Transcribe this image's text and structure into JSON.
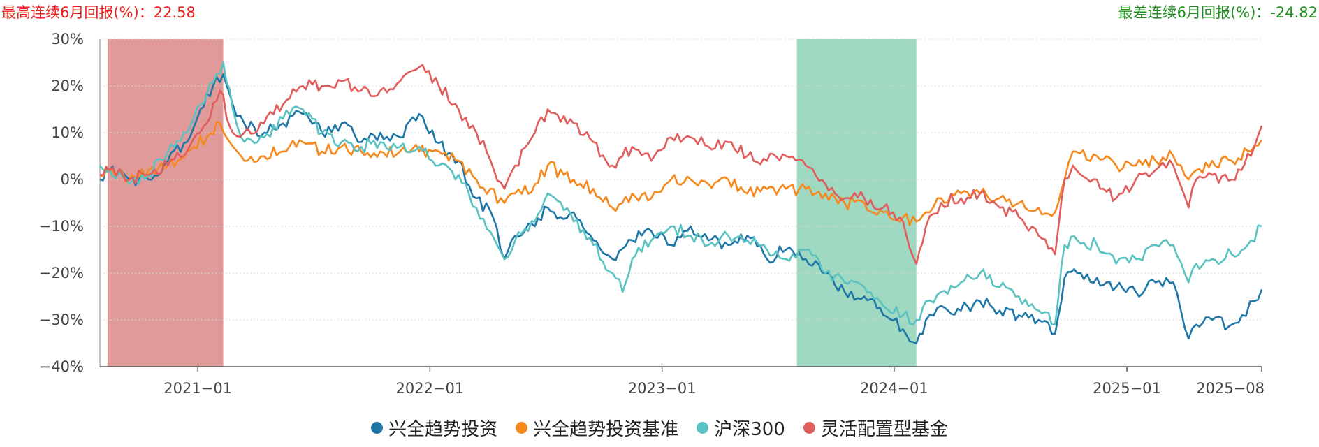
{
  "header": {
    "best_label": "最高连续6月回报(%)：",
    "best_value": "22.58",
    "worst_label": "最差连续6月回报(%)：",
    "worst_value": "-24.82"
  },
  "colors": {
    "fund": "#1f77a8",
    "benchmark": "#f5891e",
    "hs300": "#5bc2c2",
    "category": "#e15d5d",
    "best_band": "#e09a9a",
    "worst_band": "#9fd9c1"
  },
  "chart_data": {
    "type": "line",
    "y_unit": "%",
    "ylim": [
      -40,
      30
    ],
    "yticks": [
      30,
      20,
      10,
      0,
      -10,
      -20,
      -30,
      -40
    ],
    "ytick_labels": [
      "30%",
      "20%",
      "10%",
      "0%",
      "−10%",
      "−20%",
      "−30%",
      "−40%"
    ],
    "xlim": [
      "2020-07-31",
      "2025-08-01"
    ],
    "xticks": [
      "2021-01-01",
      "2022-01-01",
      "2023-01-01",
      "2024-01-01",
      "2025-01-01",
      "2025-08-01"
    ],
    "xtick_labels": [
      "2021−01",
      "2022−01",
      "2023−01",
      "2024−01",
      "2025−01",
      "2025−08"
    ],
    "grid": true,
    "legend_position": "bottom",
    "highlight_bands": [
      {
        "name": "best",
        "start": "2020-08-12",
        "end": "2021-02-10"
      },
      {
        "name": "worst",
        "start": "2023-08-01",
        "end": "2024-02-05"
      }
    ],
    "series": [
      {
        "name": "兴全趋势投资",
        "color_key": "fund",
        "points": [
          [
            "2020-07-31",
            0
          ],
          [
            "2020-08-15",
            2
          ],
          [
            "2020-09-15",
            0
          ],
          [
            "2020-10-15",
            0
          ],
          [
            "2020-11-15",
            4
          ],
          [
            "2020-12-15",
            8
          ],
          [
            "2021-01-05",
            15
          ],
          [
            "2021-01-25",
            20
          ],
          [
            "2021-02-10",
            22.5
          ],
          [
            "2021-02-25",
            16
          ],
          [
            "2021-03-15",
            12
          ],
          [
            "2021-04-15",
            10
          ],
          [
            "2021-05-15",
            12
          ],
          [
            "2021-06-15",
            14
          ],
          [
            "2021-07-15",
            10
          ],
          [
            "2021-08-15",
            12
          ],
          [
            "2021-09-15",
            8
          ],
          [
            "2021-10-15",
            10
          ],
          [
            "2021-11-15",
            9
          ],
          [
            "2021-12-15",
            14
          ],
          [
            "2022-01-10",
            8
          ],
          [
            "2022-02-15",
            4
          ],
          [
            "2022-03-15",
            -4
          ],
          [
            "2022-04-10",
            -8
          ],
          [
            "2022-04-28",
            -17
          ],
          [
            "2022-05-15",
            -12
          ],
          [
            "2022-06-15",
            -10
          ],
          [
            "2022-07-05",
            -6
          ],
          [
            "2022-07-25",
            -8
          ],
          [
            "2022-08-15",
            -7
          ],
          [
            "2022-09-15",
            -13
          ],
          [
            "2022-10-15",
            -17
          ],
          [
            "2022-11-15",
            -13
          ],
          [
            "2022-12-15",
            -11
          ],
          [
            "2023-01-15",
            -14
          ],
          [
            "2023-02-15",
            -10
          ],
          [
            "2023-03-15",
            -13
          ],
          [
            "2023-04-15",
            -14
          ],
          [
            "2023-05-15",
            -12
          ],
          [
            "2023-06-15",
            -17
          ],
          [
            "2023-07-15",
            -15
          ],
          [
            "2023-08-15",
            -17
          ],
          [
            "2023-09-15",
            -20
          ],
          [
            "2023-10-15",
            -24
          ],
          [
            "2023-11-15",
            -25
          ],
          [
            "2023-12-15",
            -29
          ],
          [
            "2024-01-15",
            -32
          ],
          [
            "2024-02-05",
            -35
          ],
          [
            "2024-02-20",
            -30
          ],
          [
            "2024-03-15",
            -27
          ],
          [
            "2024-04-15",
            -28
          ],
          [
            "2024-05-15",
            -26
          ],
          [
            "2024-06-15",
            -28
          ],
          [
            "2024-07-15",
            -29
          ],
          [
            "2024-08-15",
            -30
          ],
          [
            "2024-09-10",
            -33
          ],
          [
            "2024-09-25",
            -21
          ],
          [
            "2024-10-15",
            -20
          ],
          [
            "2024-11-15",
            -21
          ],
          [
            "2024-12-15",
            -23
          ],
          [
            "2025-01-15",
            -24
          ],
          [
            "2025-02-15",
            -22
          ],
          [
            "2025-03-15",
            -22
          ],
          [
            "2025-04-08",
            -34
          ],
          [
            "2025-04-20",
            -31
          ],
          [
            "2025-05-15",
            -30
          ],
          [
            "2025-06-15",
            -31
          ],
          [
            "2025-07-01",
            -29
          ],
          [
            "2025-07-20",
            -26
          ],
          [
            "2025-08-01",
            -23.5
          ]
        ]
      },
      {
        "name": "兴全趋势投资基准",
        "color_key": "benchmark",
        "points": [
          [
            "2020-07-31",
            1
          ],
          [
            "2020-08-15",
            2
          ],
          [
            "2020-09-15",
            0
          ],
          [
            "2020-10-15",
            2
          ],
          [
            "2020-11-15",
            3
          ],
          [
            "2020-12-15",
            6
          ],
          [
            "2021-01-15",
            9
          ],
          [
            "2021-02-05",
            12
          ],
          [
            "2021-02-20",
            8
          ],
          [
            "2021-03-10",
            5
          ],
          [
            "2021-04-15",
            5
          ],
          [
            "2021-05-15",
            6
          ],
          [
            "2021-06-15",
            8
          ],
          [
            "2021-07-15",
            6
          ],
          [
            "2021-08-15",
            7
          ],
          [
            "2021-09-15",
            6
          ],
          [
            "2021-10-15",
            6
          ],
          [
            "2021-11-15",
            6
          ],
          [
            "2021-12-15",
            6
          ],
          [
            "2022-01-15",
            6
          ],
          [
            "2022-02-15",
            4
          ],
          [
            "2022-03-15",
            0
          ],
          [
            "2022-04-28",
            -5
          ],
          [
            "2022-05-15",
            -3
          ],
          [
            "2022-06-15",
            -1
          ],
          [
            "2022-07-05",
            3
          ],
          [
            "2022-08-15",
            0
          ],
          [
            "2022-09-15",
            -2
          ],
          [
            "2022-10-15",
            -6
          ],
          [
            "2022-11-15",
            -3
          ],
          [
            "2022-12-15",
            -4
          ],
          [
            "2023-01-15",
            0
          ],
          [
            "2023-02-15",
            0
          ],
          [
            "2023-03-15",
            -1
          ],
          [
            "2023-04-15",
            0
          ],
          [
            "2023-05-15",
            -3
          ],
          [
            "2023-06-15",
            -2
          ],
          [
            "2023-07-15",
            -2
          ],
          [
            "2023-08-15",
            -2
          ],
          [
            "2023-09-15",
            -3
          ],
          [
            "2023-10-15",
            -5
          ],
          [
            "2023-11-15",
            -5
          ],
          [
            "2023-12-15",
            -7
          ],
          [
            "2024-01-15",
            -8
          ],
          [
            "2024-02-05",
            -9
          ],
          [
            "2024-02-20",
            -7
          ],
          [
            "2024-03-15",
            -4
          ],
          [
            "2024-04-15",
            -3
          ],
          [
            "2024-05-15",
            -3
          ],
          [
            "2024-06-15",
            -4
          ],
          [
            "2024-07-15",
            -5
          ],
          [
            "2024-08-15",
            -6
          ],
          [
            "2024-09-10",
            -7
          ],
          [
            "2024-09-25",
            0
          ],
          [
            "2024-10-08",
            6
          ],
          [
            "2024-11-15",
            5
          ],
          [
            "2024-12-15",
            3
          ],
          [
            "2025-01-15",
            3
          ],
          [
            "2025-02-15",
            4
          ],
          [
            "2025-03-15",
            5
          ],
          [
            "2025-04-08",
            0
          ],
          [
            "2025-04-20",
            2
          ],
          [
            "2025-05-15",
            4
          ],
          [
            "2025-06-15",
            4
          ],
          [
            "2025-07-15",
            6
          ],
          [
            "2025-08-01",
            8.5
          ]
        ]
      },
      {
        "name": "沪深300",
        "color_key": "hs300",
        "points": [
          [
            "2020-07-31",
            3
          ],
          [
            "2020-08-15",
            2
          ],
          [
            "2020-09-15",
            -1
          ],
          [
            "2020-10-15",
            1
          ],
          [
            "2020-11-15",
            6
          ],
          [
            "2020-12-15",
            10
          ],
          [
            "2021-01-15",
            18
          ],
          [
            "2021-02-10",
            25
          ],
          [
            "2021-02-25",
            15
          ],
          [
            "2021-03-10",
            9
          ],
          [
            "2021-04-15",
            9
          ],
          [
            "2021-05-15",
            13
          ],
          [
            "2021-06-15",
            15
          ],
          [
            "2021-07-15",
            10
          ],
          [
            "2021-08-15",
            8
          ],
          [
            "2021-09-15",
            7
          ],
          [
            "2021-10-15",
            8
          ],
          [
            "2021-11-15",
            7
          ],
          [
            "2021-12-15",
            7
          ],
          [
            "2022-01-15",
            3
          ],
          [
            "2022-02-15",
            1
          ],
          [
            "2022-03-15",
            -6
          ],
          [
            "2022-04-28",
            -17
          ],
          [
            "2022-05-15",
            -13
          ],
          [
            "2022-06-15",
            -9
          ],
          [
            "2022-07-05",
            -3
          ],
          [
            "2022-08-15",
            -9
          ],
          [
            "2022-09-15",
            -14
          ],
          [
            "2022-10-15",
            -20
          ],
          [
            "2022-10-31",
            -24
          ],
          [
            "2022-11-15",
            -17
          ],
          [
            "2022-12-15",
            -13
          ],
          [
            "2023-01-15",
            -10
          ],
          [
            "2023-02-15",
            -12
          ],
          [
            "2023-03-15",
            -14
          ],
          [
            "2023-04-15",
            -12
          ],
          [
            "2023-05-15",
            -13
          ],
          [
            "2023-06-15",
            -15
          ],
          [
            "2023-07-15",
            -17
          ],
          [
            "2023-08-15",
            -15
          ],
          [
            "2023-09-15",
            -20
          ],
          [
            "2023-10-15",
            -22
          ],
          [
            "2023-11-15",
            -23
          ],
          [
            "2023-12-15",
            -27
          ],
          [
            "2024-01-15",
            -29
          ],
          [
            "2024-02-05",
            -30
          ],
          [
            "2024-02-20",
            -26
          ],
          [
            "2024-03-15",
            -24
          ],
          [
            "2024-04-15",
            -22
          ],
          [
            "2024-05-15",
            -20
          ],
          [
            "2024-06-15",
            -23
          ],
          [
            "2024-07-15",
            -25
          ],
          [
            "2024-08-15",
            -28
          ],
          [
            "2024-09-10",
            -31
          ],
          [
            "2024-09-25",
            -14
          ],
          [
            "2024-10-15",
            -13
          ],
          [
            "2024-11-15",
            -14
          ],
          [
            "2024-12-15",
            -18
          ],
          [
            "2025-01-15",
            -17
          ],
          [
            "2025-02-15",
            -14
          ],
          [
            "2025-03-15",
            -14
          ],
          [
            "2025-04-08",
            -22
          ],
          [
            "2025-04-20",
            -18
          ],
          [
            "2025-05-15",
            -17
          ],
          [
            "2025-06-15",
            -16
          ],
          [
            "2025-07-15",
            -13
          ],
          [
            "2025-08-01",
            -10
          ]
        ]
      },
      {
        "name": "灵活配置型基金",
        "color_key": "category",
        "points": [
          [
            "2020-07-31",
            1
          ],
          [
            "2020-08-15",
            2
          ],
          [
            "2020-09-15",
            0
          ],
          [
            "2020-10-15",
            1
          ],
          [
            "2020-11-15",
            3
          ],
          [
            "2020-12-15",
            6
          ],
          [
            "2021-01-15",
            12
          ],
          [
            "2021-02-05",
            19
          ],
          [
            "2021-02-25",
            10
          ],
          [
            "2021-03-15",
            10
          ],
          [
            "2021-04-15",
            12
          ],
          [
            "2021-05-15",
            16
          ],
          [
            "2021-06-15",
            20
          ],
          [
            "2021-07-15",
            20
          ],
          [
            "2021-08-15",
            21
          ],
          [
            "2021-09-15",
            19
          ],
          [
            "2021-10-15",
            19
          ],
          [
            "2021-11-15",
            21
          ],
          [
            "2021-12-15",
            24
          ],
          [
            "2022-01-15",
            20
          ],
          [
            "2022-02-15",
            15
          ],
          [
            "2022-03-15",
            10
          ],
          [
            "2022-04-28",
            -2
          ],
          [
            "2022-05-15",
            3
          ],
          [
            "2022-06-15",
            10
          ],
          [
            "2022-07-05",
            15
          ],
          [
            "2022-08-15",
            12
          ],
          [
            "2022-09-15",
            8
          ],
          [
            "2022-10-15",
            3
          ],
          [
            "2022-11-15",
            7
          ],
          [
            "2022-12-15",
            4
          ],
          [
            "2023-01-15",
            9
          ],
          [
            "2023-02-15",
            9
          ],
          [
            "2023-03-15",
            7
          ],
          [
            "2023-04-15",
            8
          ],
          [
            "2023-05-15",
            5
          ],
          [
            "2023-06-15",
            4
          ],
          [
            "2023-07-15",
            5
          ],
          [
            "2023-08-15",
            3
          ],
          [
            "2023-09-15",
            -1
          ],
          [
            "2023-10-15",
            -4
          ],
          [
            "2023-11-15",
            -4
          ],
          [
            "2023-12-15",
            -6
          ],
          [
            "2024-01-15",
            -9
          ],
          [
            "2024-02-05",
            -18
          ],
          [
            "2024-02-20",
            -10
          ],
          [
            "2024-03-15",
            -5
          ],
          [
            "2024-04-15",
            -4
          ],
          [
            "2024-05-15",
            -3
          ],
          [
            "2024-06-15",
            -6
          ],
          [
            "2024-07-15",
            -8
          ],
          [
            "2024-08-15",
            -12
          ],
          [
            "2024-09-10",
            -16
          ],
          [
            "2024-09-25",
            0
          ],
          [
            "2024-10-08",
            3
          ],
          [
            "2024-11-15",
            0
          ],
          [
            "2024-12-15",
            -4
          ],
          [
            "2025-01-15",
            0
          ],
          [
            "2025-02-15",
            2
          ],
          [
            "2025-03-15",
            3
          ],
          [
            "2025-04-08",
            -6
          ],
          [
            "2025-04-20",
            0
          ],
          [
            "2025-05-15",
            1
          ],
          [
            "2025-06-15",
            0
          ],
          [
            "2025-07-15",
            5
          ],
          [
            "2025-08-01",
            11.5
          ]
        ]
      }
    ]
  },
  "legend": [
    {
      "label": "兴全趋势投资",
      "color_key": "fund"
    },
    {
      "label": "兴全趋势投资基准",
      "color_key": "benchmark"
    },
    {
      "label": "沪深300",
      "color_key": "hs300"
    },
    {
      "label": "灵活配置型基金",
      "color_key": "category"
    }
  ]
}
